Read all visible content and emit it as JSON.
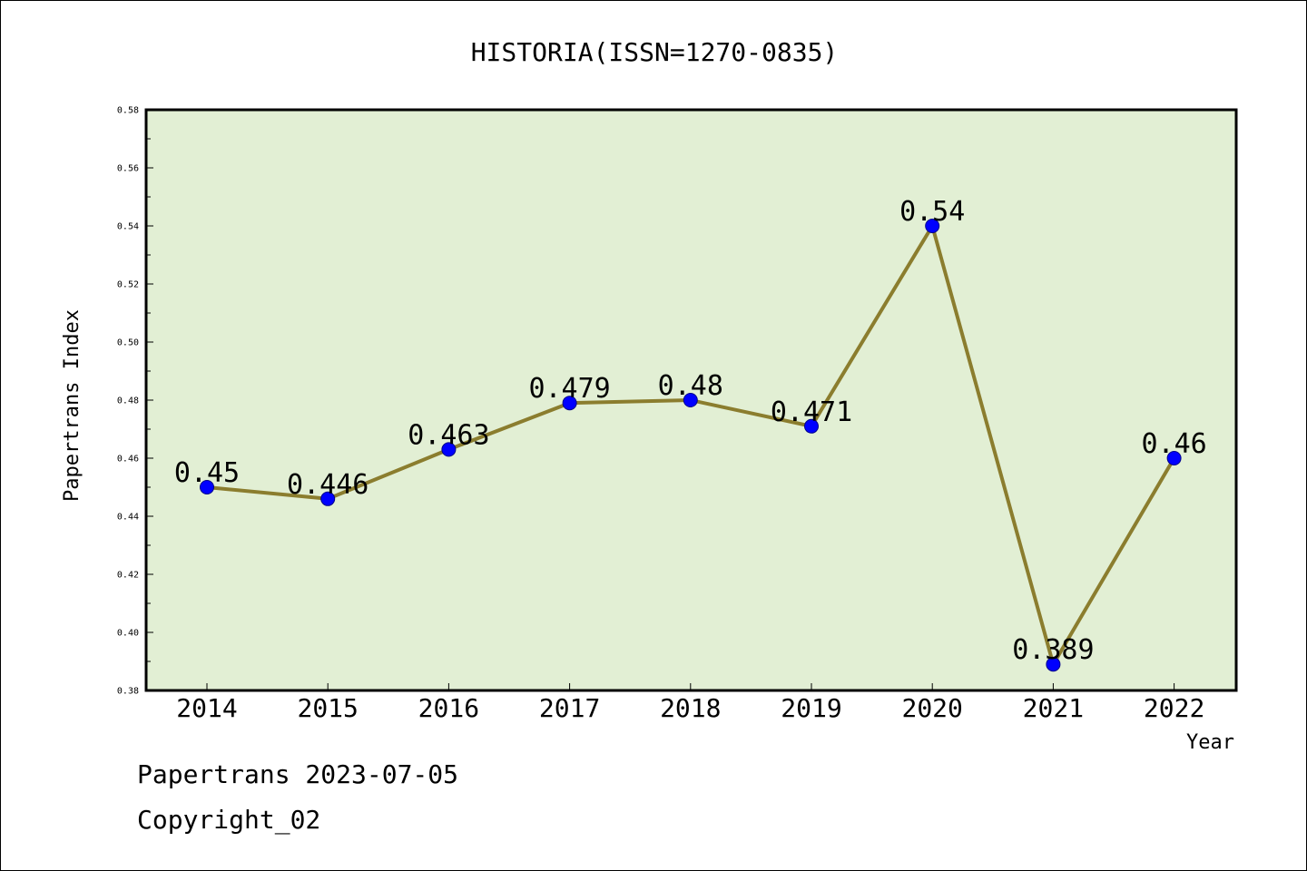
{
  "chart_data": {
    "type": "line",
    "title": "HISTORIA(ISSN=1270-0835)",
    "xlabel": "Year",
    "ylabel": "Papertrans Index",
    "x": [
      "2014",
      "2015",
      "2016",
      "2017",
      "2018",
      "2019",
      "2020",
      "2021",
      "2022"
    ],
    "series": [
      {
        "values": [
          0.45,
          0.446,
          0.463,
          0.479,
          0.48,
          0.471,
          0.54,
          0.389,
          0.46
        ],
        "labels": [
          "0.45",
          "0.446",
          "0.463",
          "0.479",
          "0.48",
          "0.471",
          "0.54",
          "0.389",
          "0.46"
        ],
        "line_color": "#8b7d2e",
        "marker_color": "#0000ff"
      }
    ],
    "ylim": [
      0.38,
      0.58
    ],
    "yticks": [
      "0.38",
      "0.40",
      "0.42",
      "0.44",
      "0.46",
      "0.48",
      "0.50",
      "0.52",
      "0.54",
      "0.56",
      "0.58"
    ],
    "plot_background": "#e2efd4",
    "grid": false,
    "legend": "none"
  },
  "footer": {
    "line1": "Papertrans 2023-07-05",
    "line2": "Copyright_02"
  }
}
